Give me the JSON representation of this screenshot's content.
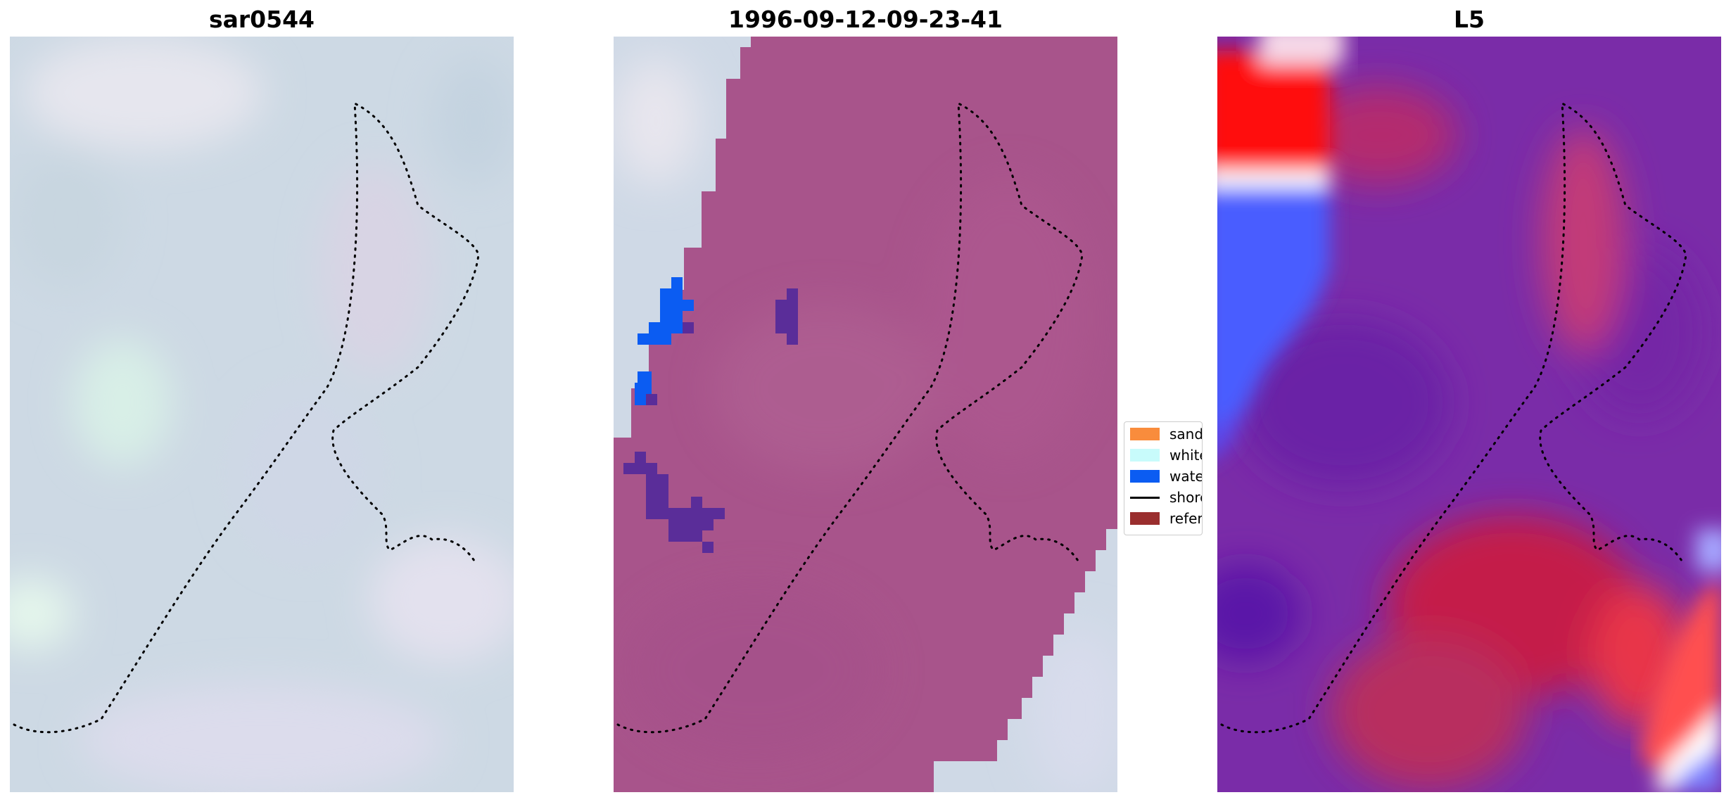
{
  "panels": [
    {
      "title": "sar0544",
      "type": "rgb-satellite-image"
    },
    {
      "title": "1996-09-12-09-23-41",
      "type": "classified-image-overlay"
    },
    {
      "title": "L5",
      "type": "diverging-index-map"
    }
  ],
  "legend": {
    "items": [
      {
        "label": "sand",
        "color": "#f98c3c",
        "kind": "patch"
      },
      {
        "label": "whitew",
        "color": "#c8fbfb",
        "kind": "patch"
      },
      {
        "label": "water",
        "color": "#0b5cf2",
        "kind": "patch"
      },
      {
        "label": "shorel",
        "color": "#000000",
        "kind": "line"
      },
      {
        "label": "referen",
        "color": "#9a2e2e",
        "kind": "patch"
      }
    ]
  },
  "colors": {
    "background": "#ffffff",
    "panel1_base": "#cfdbe6",
    "classified_overlay": "#a8548b",
    "water_class": "#0b5cf2",
    "water_cluster": "#5a2d99",
    "l5_red": "#ff0000",
    "l5_blue": "#2f4dff",
    "l5_purple": "#7a2ca8",
    "shoreline": "#000000"
  }
}
